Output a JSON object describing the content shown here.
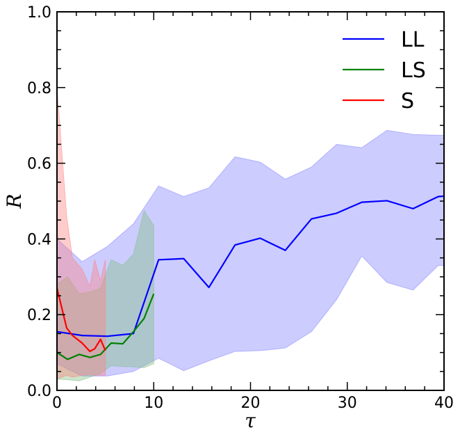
{
  "chart_data": {
    "type": "line",
    "xlabel": "τ",
    "ylabel": "R",
    "xlim": [
      0,
      40
    ],
    "ylim": [
      0,
      1.0
    ],
    "x_ticks": [
      0,
      10,
      20,
      30,
      40
    ],
    "x_tick_labels": [
      "0",
      "10",
      "20",
      "30",
      "40"
    ],
    "y_ticks": [
      0,
      0.2,
      0.4,
      0.6,
      0.8,
      1.0
    ],
    "y_tick_labels": [
      "0.0",
      "0.2",
      "0.4",
      "0.6",
      "0.8",
      "1.0"
    ],
    "grid": false,
    "legend_position": "top-right",
    "series": [
      {
        "name": "LL",
        "color": "#0000ff",
        "band_color": "#8080ff",
        "x": [
          0,
          2.6,
          5.2,
          7.9,
          10.5,
          13.1,
          15.7,
          18.4,
          21.0,
          23.6,
          26.3,
          28.9,
          31.5,
          34.1,
          36.8,
          39.4,
          40
        ],
        "y": [
          0.155,
          0.145,
          0.143,
          0.15,
          0.345,
          0.348,
          0.272,
          0.384,
          0.402,
          0.37,
          0.453,
          0.468,
          0.497,
          0.501,
          0.48,
          0.512,
          0.513
        ],
        "upper": [
          0.4,
          0.34,
          0.38,
          0.44,
          0.54,
          0.512,
          0.535,
          0.617,
          0.603,
          0.558,
          0.59,
          0.65,
          0.641,
          0.687,
          0.676,
          0.674,
          0.674
        ],
        "lower": [
          0.07,
          0.038,
          0.038,
          0.05,
          0.085,
          0.052,
          0.078,
          0.103,
          0.105,
          0.112,
          0.155,
          0.24,
          0.355,
          0.285,
          0.265,
          0.33,
          0.33
        ]
      },
      {
        "name": "LS",
        "color": "#008000",
        "band_color": "#7fbf7f",
        "x": [
          0,
          1.1,
          2.3,
          3.4,
          4.5,
          5.6,
          6.8,
          7.9,
          9.0,
          10.0
        ],
        "y": [
          0.1,
          0.082,
          0.095,
          0.087,
          0.095,
          0.125,
          0.123,
          0.155,
          0.19,
          0.255
        ],
        "upper": [
          0.28,
          0.3,
          0.255,
          0.26,
          0.27,
          0.345,
          0.33,
          0.36,
          0.475,
          0.435
        ],
        "lower": [
          0.03,
          0.028,
          0.025,
          0.035,
          0.045,
          0.065,
          0.063,
          0.062,
          0.06,
          0.07
        ]
      },
      {
        "name": "S",
        "color": "#ff0000",
        "band_color": "#ff8080",
        "x": [
          0,
          1.0,
          1.6,
          2.6,
          3.4,
          3.9,
          4.5,
          5.0
        ],
        "y": [
          0.27,
          0.165,
          0.145,
          0.125,
          0.103,
          0.11,
          0.135,
          0.105
        ],
        "upper": [
          0.8,
          0.46,
          0.35,
          0.32,
          0.275,
          0.345,
          0.29,
          0.345
        ],
        "lower": [
          0.03,
          0.04,
          0.035,
          0.04,
          0.042,
          0.04,
          0.04,
          0.04
        ]
      }
    ]
  }
}
